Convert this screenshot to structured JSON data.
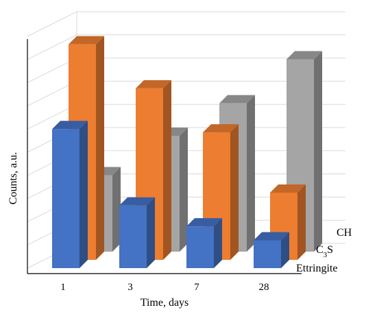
{
  "chart_data": {
    "type": "bar",
    "style": "3d-column",
    "xlabel": "Time, days",
    "ylabel": "Counts, a.u.",
    "categories": [
      "1",
      "3",
      "7",
      "28"
    ],
    "ylim": [
      0,
      10
    ],
    "gridlines": true,
    "y_tick_labels": false,
    "series": [
      {
        "name": "Ettringite",
        "values": [
          6.0,
          2.7,
          1.8,
          1.2
        ],
        "color": "#4472c4"
      },
      {
        "name": "C3S",
        "values": [
          9.3,
          7.4,
          5.5,
          2.9
        ],
        "color": "#ed7d31"
      },
      {
        "name": "CH",
        "values": [
          3.3,
          5.0,
          6.4,
          8.3
        ],
        "color": "#a5a5a5"
      }
    ]
  }
}
